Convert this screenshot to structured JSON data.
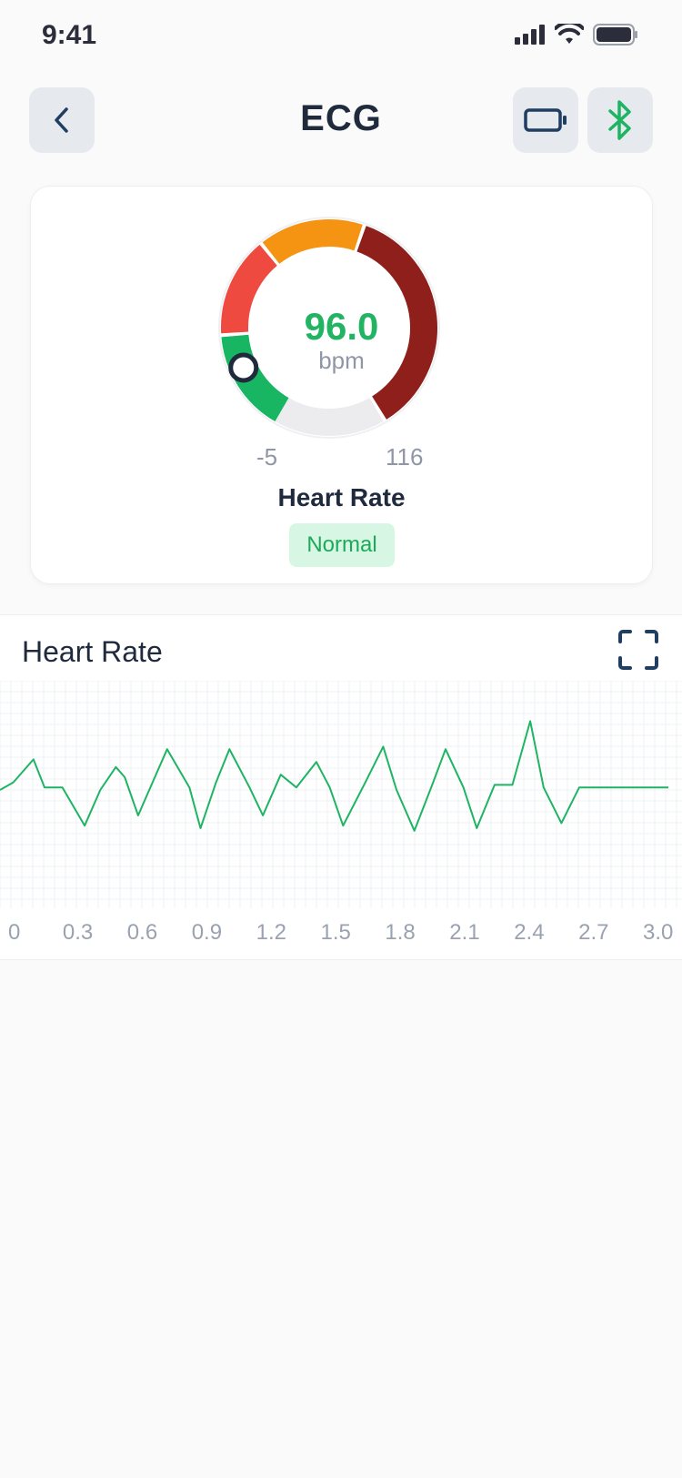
{
  "status_bar": {
    "time": "9:41"
  },
  "header": {
    "title": "ECG",
    "back_icon": "chevron-left-icon",
    "device_icon": "battery-icon",
    "bluetooth_icon": "bluetooth-icon"
  },
  "gauge": {
    "value": "96.0",
    "unit": "bpm",
    "min_label": "-5",
    "max_label": "116",
    "title": "Heart Rate",
    "status": "Normal",
    "colors": {
      "green": "#18b562",
      "red": "#ef4a3f",
      "orange": "#f59313",
      "darkred": "#8e1f1a",
      "track": "#ececef"
    }
  },
  "chart_panel": {
    "title": "Heart Rate",
    "expand_icon": "expand-icon"
  },
  "chart_data": {
    "type": "line",
    "title": "Heart Rate",
    "color": "#1fb463",
    "grid": true,
    "xlim": [
      0,
      3.0
    ],
    "x_ticks": [
      "0",
      "0.3",
      "0.6",
      "0.9",
      "1.2",
      "1.5",
      "1.8",
      "2.1",
      "2.4",
      "2.7",
      "3.0"
    ],
    "y_ticks": [],
    "series": [
      {
        "x": [
          0,
          0.06,
          0.15,
          0.2,
          0.28,
          0.38,
          0.45,
          0.52,
          0.56,
          0.62,
          0.68,
          0.75,
          0.85,
          0.9,
          0.97,
          1.03,
          1.12,
          1.18,
          1.26,
          1.33,
          1.42,
          1.48,
          1.54,
          1.64,
          1.72,
          1.78,
          1.86,
          1.94,
          2.0,
          2.08,
          2.14,
          2.22,
          2.3,
          2.38,
          2.44,
          2.52,
          2.6,
          2.66,
          2.75,
          2.82,
          2.91,
          3.0
        ],
        "y": [
          0,
          0.3,
          1.2,
          0.1,
          0.1,
          -1.4,
          0,
          0.9,
          0.5,
          -1.0,
          0.2,
          1.6,
          0.1,
          -1.5,
          0.3,
          1.6,
          0.1,
          -1.0,
          0.6,
          0.1,
          1.1,
          0.1,
          -1.4,
          0.3,
          1.7,
          0.0,
          -1.6,
          0.2,
          1.6,
          0.1,
          -1.5,
          0.2,
          0.2,
          2.7,
          0.1,
          -1.3,
          0.1,
          0.1,
          0.1,
          0.1,
          0.1,
          0.1
        ]
      }
    ]
  }
}
